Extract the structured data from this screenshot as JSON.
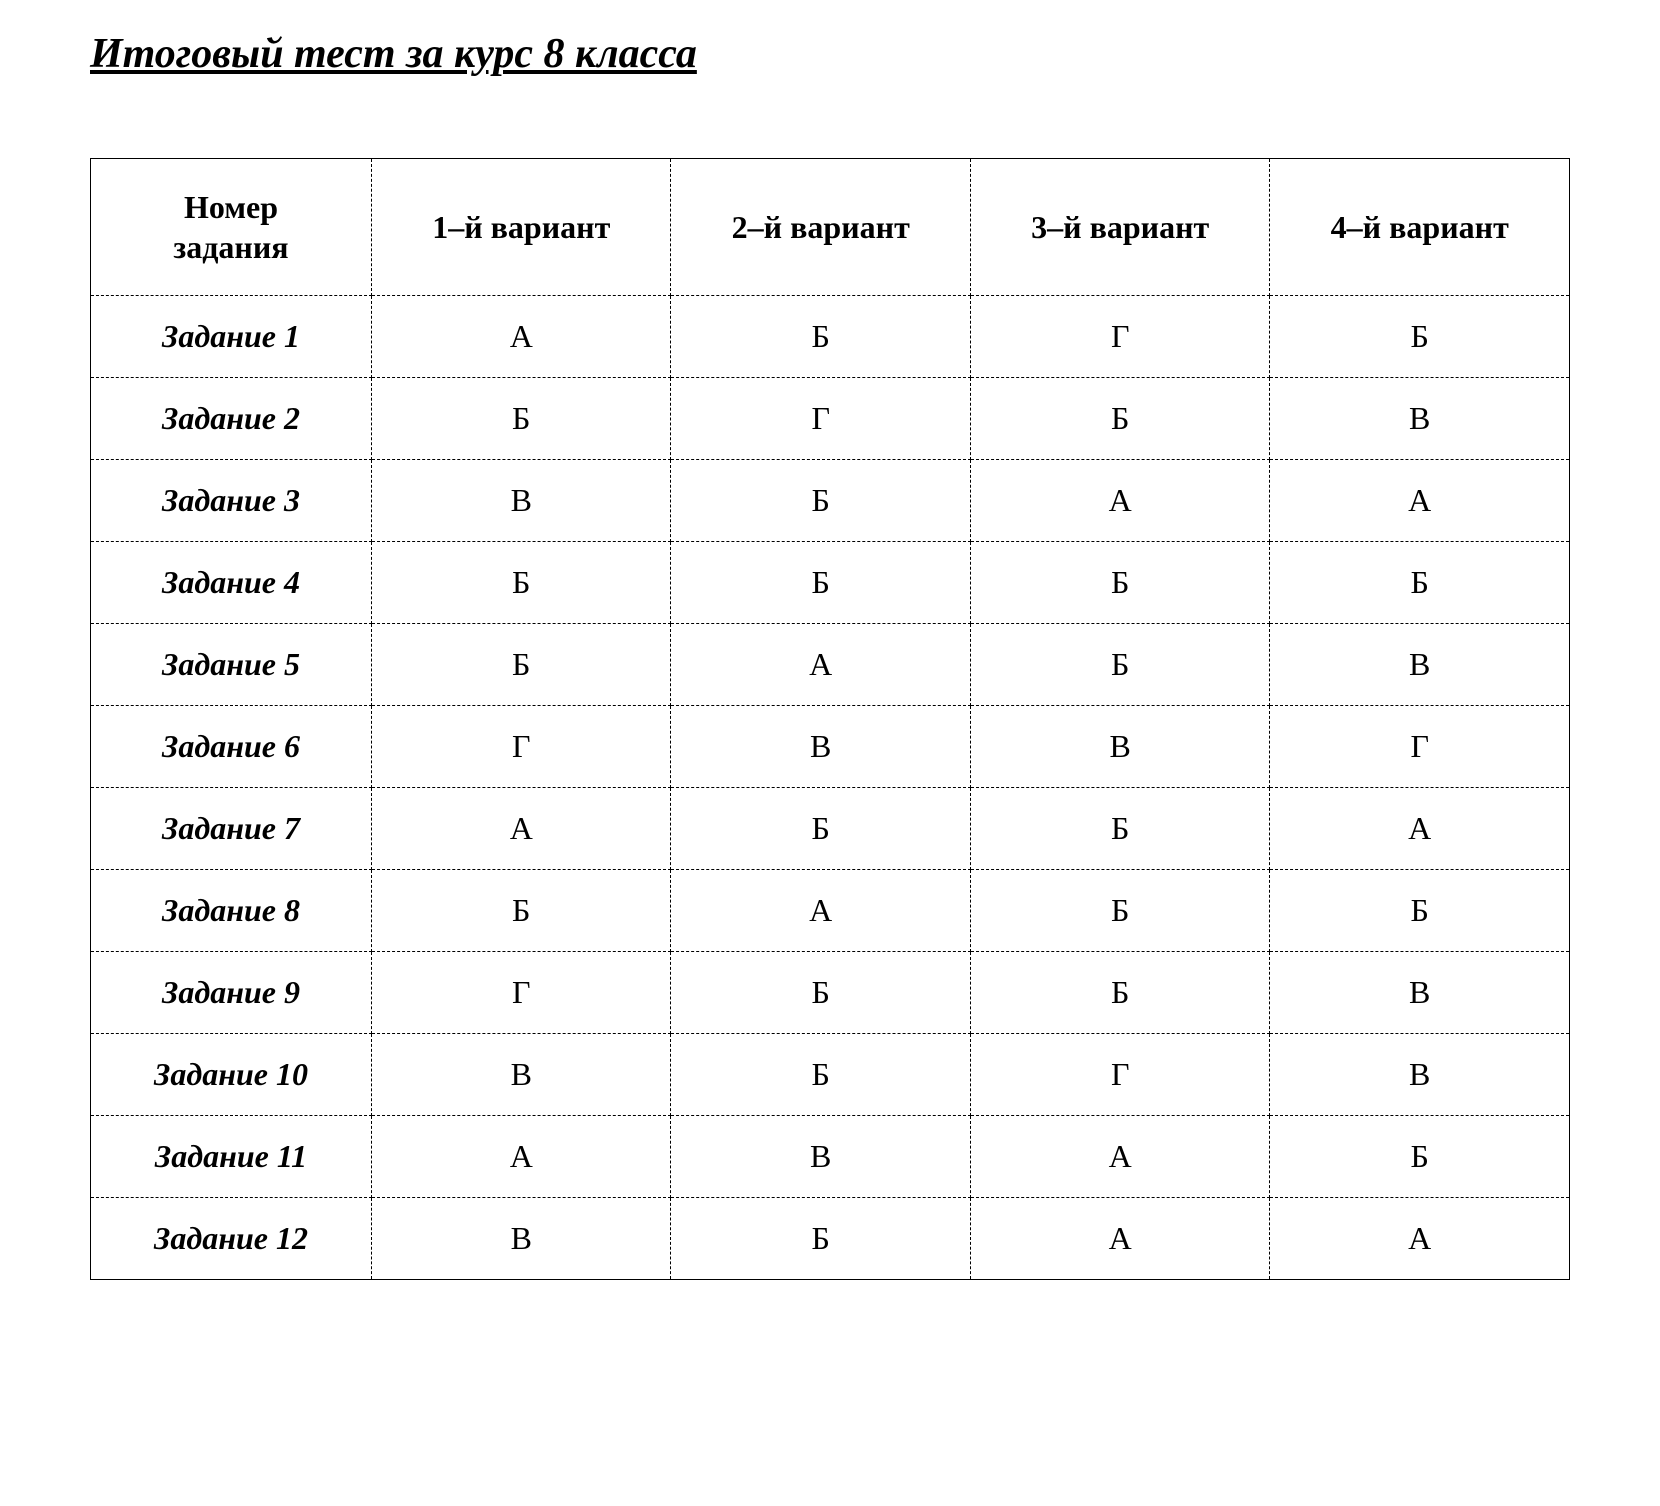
{
  "title": "Итоговый тест за курс 8 класса",
  "table": {
    "type": "table",
    "background_color": "#ffffff",
    "text_color": "#000000",
    "border_color": "#000000",
    "border_style_inner": "dashed",
    "border_style_outer": "solid",
    "header_fontsize": 32,
    "cell_fontsize": 32,
    "row_label_font_style": "italic bold",
    "header_font_style": "bold",
    "columns": [
      {
        "label_line1": "Номер",
        "label_line2": "задания",
        "width_pct": 19,
        "align": "center"
      },
      {
        "label_line1": "1–й вариант",
        "label_line2": "",
        "width_pct": 20.25,
        "align": "center"
      },
      {
        "label_line1": "2–й вариант",
        "label_line2": "",
        "width_pct": 20.25,
        "align": "center"
      },
      {
        "label_line1": "3–й вариант",
        "label_line2": "",
        "width_pct": 20.25,
        "align": "center"
      },
      {
        "label_line1": "4–й вариант",
        "label_line2": "",
        "width_pct": 20.25,
        "align": "center"
      }
    ],
    "rows": [
      {
        "label": "Задание 1",
        "cells": [
          "А",
          "Б",
          "Г",
          "Б"
        ]
      },
      {
        "label": "Задание 2",
        "cells": [
          "Б",
          "Г",
          "Б",
          "В"
        ]
      },
      {
        "label": "Задание 3",
        "cells": [
          "В",
          "Б",
          "А",
          "А"
        ]
      },
      {
        "label": "Задание 4",
        "cells": [
          "Б",
          "Б",
          "Б",
          "Б"
        ]
      },
      {
        "label": "Задание 5",
        "cells": [
          "Б",
          "А",
          "Б",
          "В"
        ]
      },
      {
        "label": "Задание 6",
        "cells": [
          "Г",
          "В",
          "В",
          "Г"
        ]
      },
      {
        "label": "Задание 7",
        "cells": [
          "А",
          "Б",
          "Б",
          "А"
        ]
      },
      {
        "label": "Задание 8",
        "cells": [
          "Б",
          "А",
          "Б",
          "Б"
        ]
      },
      {
        "label": "Задание 9",
        "cells": [
          "Г",
          "Б",
          "Б",
          "В"
        ]
      },
      {
        "label": "Задание 10",
        "cells": [
          "В",
          "Б",
          "Г",
          "В"
        ]
      },
      {
        "label": "Задание 11",
        "cells": [
          "А",
          "В",
          "А",
          "Б"
        ]
      },
      {
        "label": "Задание 12",
        "cells": [
          "В",
          "Б",
          "А",
          "А"
        ]
      }
    ]
  }
}
